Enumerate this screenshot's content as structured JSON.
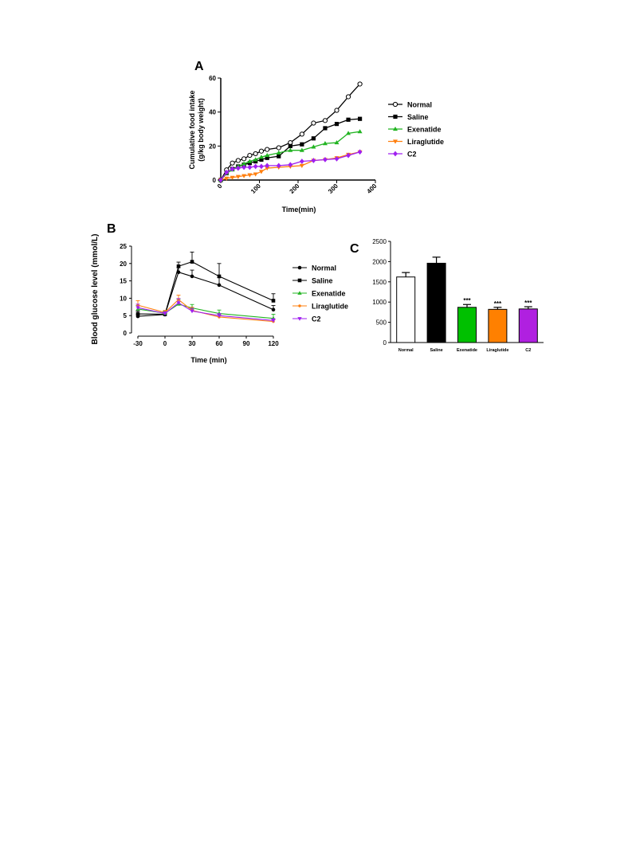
{
  "panels": {
    "A": {
      "letter": "A"
    },
    "B": {
      "letter": "B"
    },
    "C": {
      "letter": "C"
    }
  },
  "chart_data": [
    {
      "panel": "A",
      "type": "line",
      "xlabel": "Time(min)",
      "ylabel_line1": "Cumulative food intake",
      "ylabel_line2": "(g/kg body weight)",
      "xlim": [
        0,
        400
      ],
      "ylim": [
        0,
        60
      ],
      "xticks": [
        "0",
        "100",
        "200",
        "300",
        "400"
      ],
      "yticks": [
        "0",
        "20",
        "40",
        "60"
      ],
      "legend_position": "right",
      "series": [
        {
          "name": "Normal",
          "color": "#000000",
          "marker": "open-circle",
          "x": [
            0,
            15,
            30,
            45,
            60,
            75,
            90,
            105,
            120,
            150,
            180,
            210,
            240,
            270,
            300,
            330,
            360
          ],
          "y": [
            0,
            6,
            10,
            11.5,
            12.5,
            14.5,
            15.5,
            17,
            18,
            19,
            22,
            27,
            33.5,
            35,
            41,
            49,
            56.5
          ]
        },
        {
          "name": "Saline",
          "color": "#000000",
          "marker": "square",
          "x": [
            0,
            15,
            30,
            45,
            60,
            75,
            90,
            105,
            120,
            150,
            180,
            210,
            240,
            270,
            300,
            330,
            360
          ],
          "y": [
            0,
            4,
            6.5,
            8,
            9,
            10,
            11,
            12,
            13,
            14,
            20,
            21,
            24.5,
            30.5,
            33,
            35.5,
            36
          ]
        },
        {
          "name": "Exenatide",
          "color": "#22b422",
          "marker": "triangle-up",
          "x": [
            0,
            15,
            30,
            45,
            60,
            75,
            90,
            105,
            120,
            150,
            180,
            210,
            240,
            270,
            300,
            330,
            360
          ],
          "y": [
            0,
            4,
            6,
            8,
            9.5,
            11,
            12,
            13.5,
            14.5,
            16,
            17.5,
            17.5,
            19.5,
            21.5,
            22,
            27.5,
            28.5
          ]
        },
        {
          "name": "Liraglutide",
          "color": "#ff7f0e",
          "marker": "triangle-down",
          "x": [
            0,
            15,
            30,
            45,
            60,
            75,
            90,
            105,
            120,
            150,
            180,
            210,
            240,
            270,
            300,
            330,
            360
          ],
          "y": [
            0,
            1,
            1.5,
            2,
            2.5,
            3,
            3.5,
            5,
            7,
            7.5,
            8,
            8.5,
            11.5,
            12,
            13,
            15,
            16.5
          ]
        },
        {
          "name": "C2",
          "color": "#a020f0",
          "marker": "diamond",
          "x": [
            0,
            15,
            30,
            45,
            60,
            75,
            90,
            105,
            120,
            150,
            180,
            210,
            240,
            270,
            300,
            330,
            360
          ],
          "y": [
            0,
            4.5,
            6.5,
            7,
            7.5,
            7.5,
            8,
            8,
            8.5,
            8.5,
            9,
            11,
            11.5,
            12,
            12.5,
            14.5,
            16.5
          ]
        }
      ]
    },
    {
      "panel": "B",
      "type": "line",
      "xlabel": "Time (min)",
      "ylabel": "Blood glucose level (mmol/L)",
      "xlim": [
        -30,
        120
      ],
      "ylim": [
        0,
        25
      ],
      "xticks": [
        "-30",
        "0",
        "30",
        "60",
        "90",
        "120"
      ],
      "yticks": [
        "0",
        "5",
        "10",
        "15",
        "20",
        "25"
      ],
      "legend_position": "right",
      "series": [
        {
          "name": "Normal",
          "color": "#000000",
          "marker": "circle",
          "x": [
            -30,
            0,
            15,
            30,
            60,
            120
          ],
          "y": [
            4.8,
            5.3,
            17.5,
            16.3,
            13.8,
            6.7
          ],
          "err": [
            0.5,
            0.4,
            1.3,
            1.8,
            2.2,
            1.2
          ]
        },
        {
          "name": "Saline",
          "color": "#000000",
          "marker": "square",
          "x": [
            -30,
            0,
            15,
            30,
            60,
            120
          ],
          "y": [
            5.5,
            5.4,
            19.2,
            20.5,
            16.3,
            9.3
          ],
          "err": [
            0.8,
            0.5,
            1.2,
            2.8,
            3.7,
            2.0
          ]
        },
        {
          "name": "Exenatide",
          "color": "#22b422",
          "marker": "triangle-up",
          "x": [
            -30,
            0,
            15,
            30,
            60,
            120
          ],
          "y": [
            6.9,
            5.7,
            8.3,
            7.2,
            5.6,
            4.2
          ],
          "err": [
            1.0,
            0.6,
            1.4,
            1.0,
            1.0,
            1.2
          ]
        },
        {
          "name": "Liraglutide",
          "color": "#ff7f0e",
          "marker": "circle-small",
          "x": [
            -30,
            0,
            15,
            30,
            60,
            120
          ],
          "y": [
            8.0,
            5.9,
            9.6,
            6.5,
            4.6,
            3.3
          ],
          "err": [
            1.3,
            0.6,
            1.3,
            0.9,
            0.6,
            0.5
          ]
        },
        {
          "name": "C2",
          "color": "#a020f0",
          "marker": "triangle-down",
          "x": [
            -30,
            0,
            15,
            30,
            60,
            120
          ],
          "y": [
            7.3,
            5.6,
            8.7,
            6.3,
            5.0,
            3.6
          ],
          "err": [
            1.0,
            0.5,
            1.2,
            0.8,
            0.6,
            0.5
          ]
        }
      ]
    },
    {
      "panel": "C",
      "type": "bar",
      "categories": [
        "Normal",
        "Saline",
        "Exenatide",
        "Liraglutide",
        "C2"
      ],
      "values": [
        1620,
        1960,
        870,
        820,
        830
      ],
      "errors": [
        110,
        150,
        70,
        50,
        55
      ],
      "colors": [
        "#ffffff",
        "#000000",
        "#00c000",
        "#ff8000",
        "#b020e0"
      ],
      "annotations": [
        "",
        "",
        "***",
        "***",
        "***"
      ],
      "ylim": [
        0,
        2500
      ],
      "yticks": [
        "0",
        "500",
        "1000",
        "1500",
        "2000",
        "2500"
      ]
    }
  ]
}
